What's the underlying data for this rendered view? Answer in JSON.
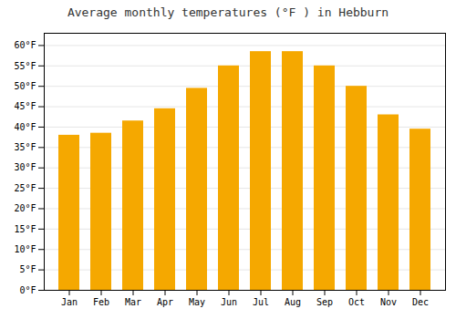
{
  "chart_data": {
    "type": "bar",
    "title": "Average monthly temperatures (°F ) in Hebburn",
    "categories": [
      "Jan",
      "Feb",
      "Mar",
      "Apr",
      "May",
      "Jun",
      "Jul",
      "Aug",
      "Sep",
      "Oct",
      "Nov",
      "Dec"
    ],
    "values": [
      38,
      38.5,
      41.5,
      44.5,
      49.5,
      55,
      58.5,
      58.5,
      55,
      50,
      43,
      39.5
    ],
    "color": "#F5A800",
    "ylim": [
      0,
      63
    ],
    "yticks": [
      {
        "value": 0,
        "label": "0°F"
      },
      {
        "value": 5,
        "label": "5°F"
      },
      {
        "value": 10,
        "label": "10°F"
      },
      {
        "value": 15,
        "label": "15°F"
      },
      {
        "value": 20,
        "label": "20°F"
      },
      {
        "value": 25,
        "label": "25°F"
      },
      {
        "value": 30,
        "label": "30°F"
      },
      {
        "value": 35,
        "label": "35°F"
      },
      {
        "value": 40,
        "label": "40°F"
      },
      {
        "value": 45,
        "label": "45°F"
      },
      {
        "value": 50,
        "label": "50°F"
      },
      {
        "value": 55,
        "label": "55°F"
      },
      {
        "value": 60,
        "label": "60°F"
      }
    ],
    "grid": true
  }
}
